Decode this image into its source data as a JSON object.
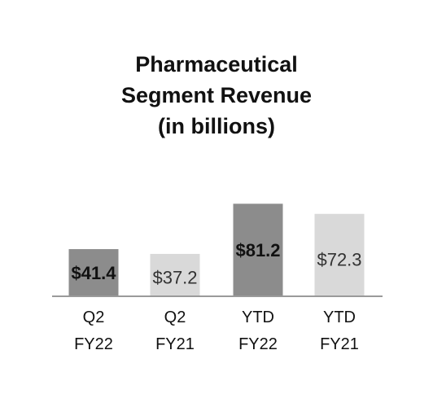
{
  "chart_data": {
    "type": "bar",
    "title_lines": [
      "Pharmaceutical",
      "Segment Revenue",
      "(in billions)"
    ],
    "categories": [
      [
        "Q2",
        "FY22"
      ],
      [
        "Q2",
        "FY21"
      ],
      [
        "YTD",
        "FY22"
      ],
      [
        "YTD",
        "FY21"
      ]
    ],
    "values": [
      41.4,
      37.2,
      81.2,
      72.3
    ],
    "value_labels": [
      "$41.4",
      "$37.2",
      "$81.2",
      "$72.3"
    ],
    "bar_colors": [
      "#8c8c8c",
      "#d9d9d9",
      "#8c8c8c",
      "#d9d9d9"
    ],
    "label_bold": [
      true,
      false,
      true,
      false
    ],
    "ylim": [
      0,
      100
    ],
    "grid": false,
    "legend": "none"
  }
}
